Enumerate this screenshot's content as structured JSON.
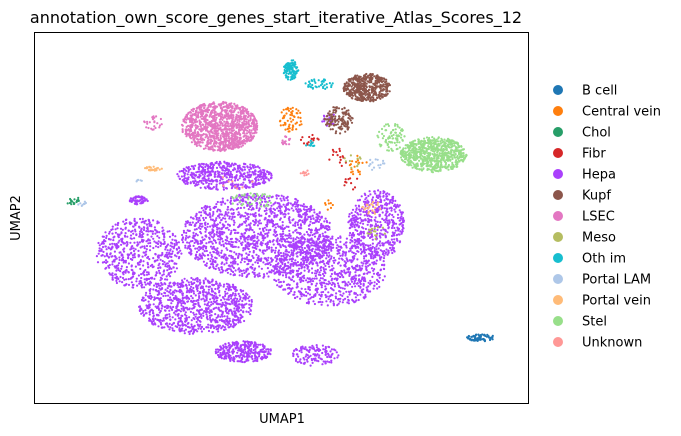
{
  "chart_data": {
    "type": "scatter",
    "title": "annotation_own_score_genes_start_iterative_Atlas_Scores_12",
    "xlabel": "UMAP1",
    "ylabel": "UMAP2",
    "xlim": [
      0,
      100
    ],
    "ylim": [
      0,
      100
    ],
    "xticks": [],
    "yticks": [],
    "grid": false,
    "legend_placement": "right",
    "series": [
      {
        "name": "B cell",
        "color": "#1f77b4",
        "clusters": [
          [
            92,
            16,
            3,
            1,
            70
          ]
        ]
      },
      {
        "name": "Central vein",
        "color": "#ff7f0e",
        "clusters": [
          [
            52,
            78,
            2.5,
            3.5,
            60
          ],
          [
            66,
            65,
            2,
            3,
            20
          ],
          [
            60,
            54,
            1,
            2,
            8
          ]
        ]
      },
      {
        "name": "Chol",
        "color": "#279e68",
        "clusters": [
          [
            6,
            55,
            1.5,
            1.2,
            18
          ]
        ]
      },
      {
        "name": "Fibr",
        "color": "#d62728",
        "clusters": [
          [
            56,
            72,
            2,
            2,
            15
          ],
          [
            62,
            67,
            2,
            3,
            15
          ],
          [
            65,
            60,
            2,
            2,
            10
          ]
        ]
      },
      {
        "name": "Hepa",
        "color": "#aa40fc",
        "clusters": [
          [
            45,
            45,
            16,
            12,
            1500
          ],
          [
            32,
            25,
            12,
            8,
            900
          ],
          [
            60,
            35,
            12,
            10,
            800
          ],
          [
            20,
            40,
            9,
            10,
            600
          ],
          [
            38,
            62,
            10,
            4,
            500
          ],
          [
            70,
            48,
            6,
            10,
            500
          ],
          [
            42,
            12,
            6,
            3,
            300
          ],
          [
            57,
            11,
            5,
            3,
            120
          ],
          [
            20,
            55,
            2,
            1.2,
            60
          ],
          [
            60,
            78,
            1.5,
            2,
            20
          ]
        ]
      },
      {
        "name": "Kupf",
        "color": "#8c564b",
        "clusters": [
          [
            68,
            87,
            5,
            4,
            450
          ],
          [
            62,
            78,
            3,
            4,
            120
          ]
        ]
      },
      {
        "name": "LSEC",
        "color": "#e377c2",
        "clusters": [
          [
            37,
            76,
            8,
            7,
            1100
          ],
          [
            23,
            77,
            2,
            2,
            25
          ],
          [
            51,
            72,
            1,
            1.5,
            15
          ]
        ]
      },
      {
        "name": "Meso",
        "color": "#b5bd61",
        "clusters": [
          [
            70,
            46,
            2,
            2,
            15
          ],
          [
            65,
            66,
            2,
            2,
            10
          ]
        ]
      },
      {
        "name": "Oth im",
        "color": "#17becf",
        "clusters": [
          [
            52,
            92,
            1.6,
            3,
            120
          ],
          [
            58,
            88,
            3,
            1.5,
            40
          ],
          [
            56,
            71,
            1,
            1,
            10
          ]
        ]
      },
      {
        "name": "Portal LAM",
        "color": "#aec7e8",
        "clusters": [
          [
            70,
            65,
            2,
            2,
            15
          ],
          [
            8,
            54,
            1,
            1,
            8
          ],
          [
            20,
            60,
            1,
            1,
            5
          ]
        ]
      },
      {
        "name": "Portal vein",
        "color": "#ffbb78",
        "clusters": [
          [
            23,
            64,
            2,
            0.6,
            25
          ],
          [
            69,
            53,
            2,
            2,
            20
          ]
        ]
      },
      {
        "name": "Stel",
        "color": "#98df8a",
        "clusters": [
          [
            82,
            68,
            7,
            5,
            700
          ],
          [
            73,
            73,
            3,
            4,
            80
          ],
          [
            44,
            55,
            5,
            2,
            40
          ]
        ]
      },
      {
        "name": "Unknown",
        "color": "#ff9896",
        "clusters": [
          [
            55,
            63,
            1,
            1,
            10
          ],
          [
            40,
            60,
            4,
            2,
            8
          ]
        ]
      }
    ]
  }
}
